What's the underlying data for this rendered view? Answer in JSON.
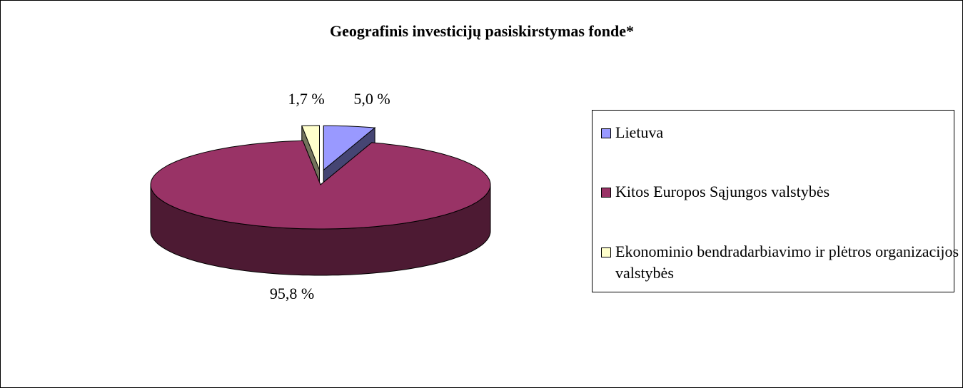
{
  "chart_data": {
    "type": "pie",
    "three_d": true,
    "title": "Geografinis investicijų pasiskirstymas fonde*",
    "categories": [
      "Lietuva",
      "Kitos Europos Sąjungos valstybės",
      "Ekonominio bendradarbiavimo ir plėtros organizacijos valstybės"
    ],
    "values": [
      5.0,
      95.8,
      1.7
    ],
    "value_labels": [
      "5,0 %",
      "95,8 %",
      "1,7 %"
    ],
    "colors": [
      "#9999ff",
      "#993366",
      "#ffffcc"
    ],
    "exploded": [
      true,
      false,
      true
    ],
    "legend": "right"
  }
}
